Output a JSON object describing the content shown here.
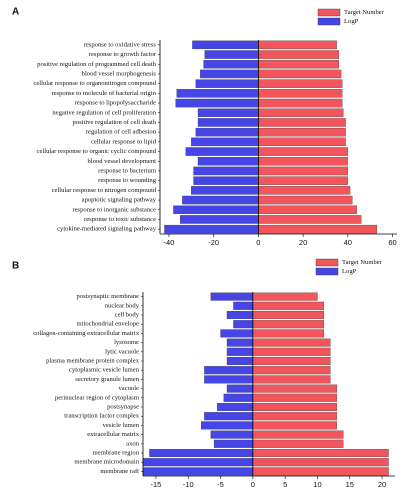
{
  "chart_data": [
    {
      "type": "bar",
      "panel_label": "A",
      "categories": [
        "response to oxidative stress",
        "response to growth factor",
        "positive regulation of programmed cell death",
        "blood vessel morphogenesis",
        "cellular response to organonitrogen compound",
        "response to molecule of bacterial origin",
        "response to lipopolysaccharide",
        "negative regulation of cell proliferation",
        "positive regulation of cell death",
        "regulation of cell adhesion",
        "cellular response to lipid",
        "cellular response to organic cyclic compound",
        "blood vessel development",
        "response to bacterium",
        "response to wounding",
        "cellular response to nitrogen compound",
        "apoptotic signaling pathway",
        "response to inorganic substance",
        "response to toxic substance",
        "cytokine-mediated signaling pathway"
      ],
      "series": [
        {
          "name": "Target Number",
          "color": "#f2555b",
          "values": [
            35,
            36,
            36,
            37,
            37.5,
            37.5,
            37.5,
            38,
            39,
            39,
            39,
            40,
            40,
            40,
            40,
            41,
            42,
            44,
            46,
            53
          ]
        },
        {
          "name": "LogP",
          "color": "#4646e6",
          "values": [
            -29.5,
            -24,
            -24.5,
            -26,
            -28,
            -36.5,
            -37,
            -27,
            -27,
            -28,
            -30,
            -32.5,
            -27,
            -29,
            -29,
            -30,
            -34,
            -38,
            -35,
            -42
          ]
        }
      ],
      "xlim": [
        -44,
        62
      ],
      "xticks": [
        -40,
        -20,
        0,
        20,
        40,
        60
      ],
      "legend": "upper right"
    },
    {
      "type": "bar",
      "panel_label": "B",
      "categories": [
        "postsynaptic membrane",
        "nuclear body",
        "cell body",
        "mitochondrial envelope",
        "collagen-containing extracellular matrix",
        "lysosome",
        "lytic vacuole",
        "plasma membrane protein complex",
        "cytoplasmic vesicle lumen",
        "secretory granule lumen",
        "vacuole",
        "perinuclear region of cytoplasm",
        "postsynapse",
        "transcription factor complex",
        "vesicle lumen",
        "extracellular matrix",
        "axon",
        "membrane region",
        "membrane microdomain",
        "membrane raft"
      ],
      "series": [
        {
          "name": "Target Number",
          "color": "#f2555b",
          "values": [
            10,
            11,
            11,
            11,
            11,
            12,
            12,
            12,
            12,
            12,
            13,
            13,
            13,
            13,
            13,
            14,
            14,
            21,
            21,
            21
          ]
        },
        {
          "name": "LogP",
          "color": "#4646e6",
          "values": [
            -6.5,
            -3,
            -4,
            -3,
            -5,
            -4,
            -4,
            -4,
            -7.5,
            -7.5,
            -4,
            -4.5,
            -5.5,
            -7.5,
            -8,
            -6.5,
            -6,
            -16,
            -17,
            -17
          ]
        }
      ],
      "xlim": [
        -17,
        22
      ],
      "xticks": [
        -15,
        -10,
        -5,
        0,
        5,
        10,
        15,
        20
      ],
      "legend": "upper right"
    }
  ]
}
